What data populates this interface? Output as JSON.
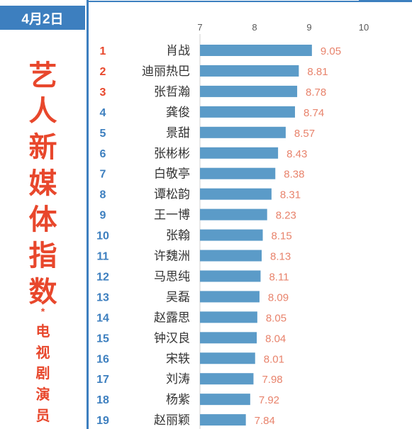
{
  "date": "4月2日",
  "title_chars": [
    "艺",
    "人",
    "新",
    "媒",
    "体",
    "指",
    "数"
  ],
  "title_sep": "*",
  "subtitle_chars": [
    "电",
    "视",
    "剧",
    "演",
    "员"
  ],
  "colors": {
    "accent": "#3d7fbf",
    "bar": "#5b9bc8",
    "value": "#e8836c",
    "rank_top": "#e8472c",
    "rank_rest": "#3d7fbf"
  },
  "chart_data": {
    "type": "bar",
    "orientation": "horizontal",
    "xlim": [
      7,
      10
    ],
    "xticks": [
      7,
      8,
      9,
      10
    ],
    "categories": [
      "肖战",
      "迪丽热巴",
      "张哲瀚",
      "龚俊",
      "景甜",
      "张彬彬",
      "白敬亭",
      "谭松韵",
      "王一博",
      "张翰",
      "许魏洲",
      "马思纯",
      "吴磊",
      "赵露思",
      "钟汉良",
      "宋轶",
      "刘涛",
      "杨紫",
      "赵丽颖"
    ],
    "ranks": [
      "1",
      "2",
      "3",
      "4",
      "5",
      "6",
      "7",
      "8",
      "9",
      "10",
      "11",
      "12",
      "13",
      "14",
      "15",
      "16",
      "17",
      "18",
      "19"
    ],
    "values": [
      9.05,
      8.81,
      8.78,
      8.74,
      8.57,
      8.43,
      8.38,
      8.31,
      8.23,
      8.15,
      8.13,
      8.11,
      8.09,
      8.05,
      8.04,
      8.01,
      7.98,
      7.92,
      7.84
    ]
  }
}
